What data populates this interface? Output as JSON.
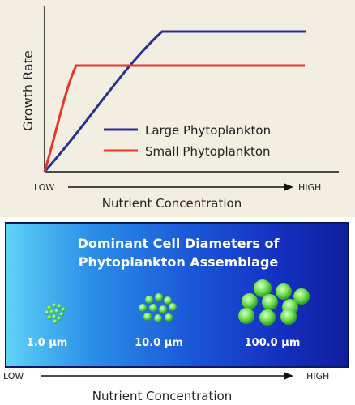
{
  "chart": {
    "ylabel": "Growth Rate",
    "xlabel": "Nutrient Concentration",
    "x_low": "LOW",
    "x_high": "HIGH",
    "legend": [
      "Large Phytoplankton",
      "Small Phytoplankton"
    ],
    "colors": {
      "large": "#2b2f94",
      "small": "#e8352a"
    }
  },
  "assemblage": {
    "title_line1": "Dominant Cell Diameters of",
    "title_line2": "Phytoplankton Assemblage",
    "sizes": [
      "1.0 μm",
      "10.0 μm",
      "100.0 μm"
    ],
    "cell_color": "#5bd846"
  },
  "bottom_axis": {
    "low": "LOW",
    "high": "HIGH",
    "label": "Nutrient Concentration"
  }
}
